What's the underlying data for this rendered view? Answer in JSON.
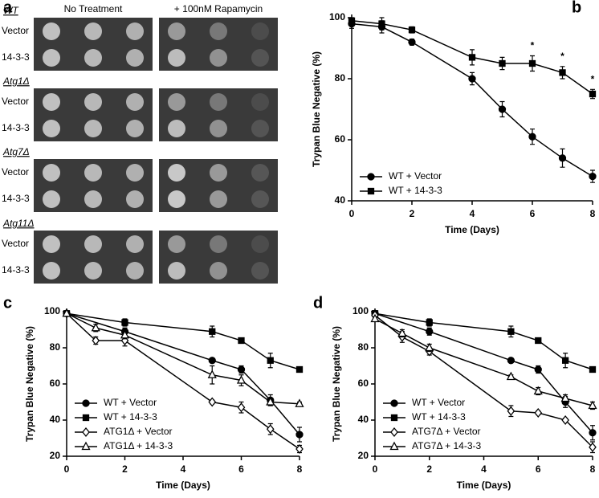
{
  "panel_a": {
    "letter": "a",
    "columns": [
      "No Treatment",
      "+ 100nM Rapamycin"
    ],
    "groups": [
      {
        "strain": "WT",
        "rows": [
          "Vector",
          "14-3-3"
        ]
      },
      {
        "strain": "Atg1Δ",
        "rows": [
          "Vector",
          "14-3-3"
        ]
      },
      {
        "strain": "Atg7Δ",
        "rows": [
          "Vector",
          "14-3-3"
        ]
      },
      {
        "strain": "Atg11Δ",
        "rows": [
          "Vector",
          "14-3-3"
        ]
      }
    ]
  },
  "chart_data": [
    {
      "type": "line",
      "panel": "b",
      "xlabel": "Time (Days)",
      "ylabel": "Trypan Blue Negative (%)",
      "xlim": [
        0,
        8
      ],
      "xticks": [
        0,
        2,
        4,
        6,
        8
      ],
      "ylim": [
        40,
        100
      ],
      "yticks": [
        40,
        60,
        80,
        100
      ],
      "legend": "lower left",
      "annotations": [
        {
          "text": "*",
          "x": 6
        },
        {
          "text": "*",
          "x": 7
        },
        {
          "text": "*",
          "x": 8
        }
      ],
      "series": [
        {
          "name": "WT + Vector",
          "color": "#000000",
          "marker": "circle",
          "x": [
            0,
            1,
            2,
            4,
            5,
            6,
            7,
            8
          ],
          "values": [
            98,
            97,
            92,
            80,
            70,
            61,
            54,
            48
          ],
          "errors": [
            1.5,
            2,
            1,
            2,
            2.5,
            2.5,
            3,
            2
          ]
        },
        {
          "name": "WT + 14-3-3",
          "color": "#000000",
          "marker": "square",
          "x": [
            0,
            1,
            2,
            4,
            5,
            6,
            7,
            8
          ],
          "values": [
            99,
            98,
            96,
            87,
            85,
            85,
            82,
            75
          ],
          "errors": [
            1,
            2,
            1,
            2.5,
            2,
            2.5,
            2,
            1.5
          ]
        }
      ]
    },
    {
      "type": "line",
      "panel": "c",
      "xlabel": "Time (Days)",
      "ylabel": "Trypan Blue Negative (%)",
      "xlim": [
        0,
        8
      ],
      "xticks": [
        0,
        2,
        4,
        6,
        8
      ],
      "ylim": [
        20,
        100
      ],
      "yticks": [
        20,
        40,
        60,
        80,
        100
      ],
      "legend": "lower left",
      "series": [
        {
          "name": "WT + Vector",
          "color": "#000000",
          "marker": "circle",
          "x": [
            0,
            2,
            5,
            6,
            7,
            8
          ],
          "values": [
            99,
            89,
            73,
            68,
            51,
            32
          ],
          "errors": [
            1,
            2,
            1,
            2,
            3,
            4
          ]
        },
        {
          "name": "WT + 14-3-3",
          "color": "#000000",
          "marker": "square",
          "x": [
            0,
            2,
            5,
            6,
            7,
            8
          ],
          "values": [
            99,
            94,
            89,
            84,
            73,
            68
          ],
          "errors": [
            1,
            2,
            3,
            1.5,
            4,
            1.5
          ]
        },
        {
          "name": "ATG1Δ + Vector",
          "color": "#000000",
          "marker": "diamond",
          "x": [
            0,
            1,
            2,
            5,
            6,
            7,
            8
          ],
          "values": [
            99,
            84,
            84,
            50,
            47,
            35,
            24
          ],
          "errors": [
            1,
            2,
            3,
            1,
            3,
            3,
            2
          ]
        },
        {
          "name": "ATG1Δ + 14-3-3",
          "color": "#000000",
          "marker": "triangle",
          "x": [
            0,
            1,
            2,
            5,
            6,
            7,
            8
          ],
          "values": [
            99,
            91,
            87,
            65,
            62,
            50,
            49
          ],
          "errors": [
            1,
            2,
            2,
            5,
            3,
            2,
            1
          ]
        }
      ]
    },
    {
      "type": "line",
      "panel": "d",
      "xlabel": "Time (Days)",
      "ylabel": "Trypan Blue Negative (%)",
      "xlim": [
        0,
        8
      ],
      "xticks": [
        0,
        2,
        4,
        6,
        8
      ],
      "ylim": [
        20,
        100
      ],
      "yticks": [
        20,
        40,
        60,
        80,
        100
      ],
      "legend": "lower left",
      "series": [
        {
          "name": "WT + Vector",
          "color": "#000000",
          "marker": "circle",
          "x": [
            0,
            2,
            5,
            6,
            7,
            8
          ],
          "values": [
            99,
            89,
            73,
            68,
            50,
            33
          ],
          "errors": [
            1,
            2,
            1,
            2,
            3,
            4
          ]
        },
        {
          "name": "WT + 14-3-3",
          "color": "#000000",
          "marker": "square",
          "x": [
            0,
            2,
            5,
            6,
            7,
            8
          ],
          "values": [
            99,
            94,
            89,
            84,
            73,
            68
          ],
          "errors": [
            1,
            2,
            3,
            1.5,
            4,
            1.5
          ]
        },
        {
          "name": "ATG7Δ + Vector",
          "color": "#000000",
          "marker": "diamond",
          "x": [
            0,
            1,
            2,
            5,
            6,
            7,
            8
          ],
          "values": [
            98,
            86,
            78,
            45,
            44,
            40,
            25
          ],
          "errors": [
            1,
            3,
            2,
            3,
            1,
            1,
            3
          ]
        },
        {
          "name": "ATG7Δ + 14-3-3",
          "color": "#000000",
          "marker": "triangle",
          "x": [
            0,
            1,
            2,
            5,
            6,
            7,
            8
          ],
          "values": [
            96,
            88,
            80,
            64,
            56,
            52,
            48
          ],
          "errors": [
            1,
            2,
            2,
            1,
            2,
            2,
            2
          ]
        }
      ]
    }
  ]
}
